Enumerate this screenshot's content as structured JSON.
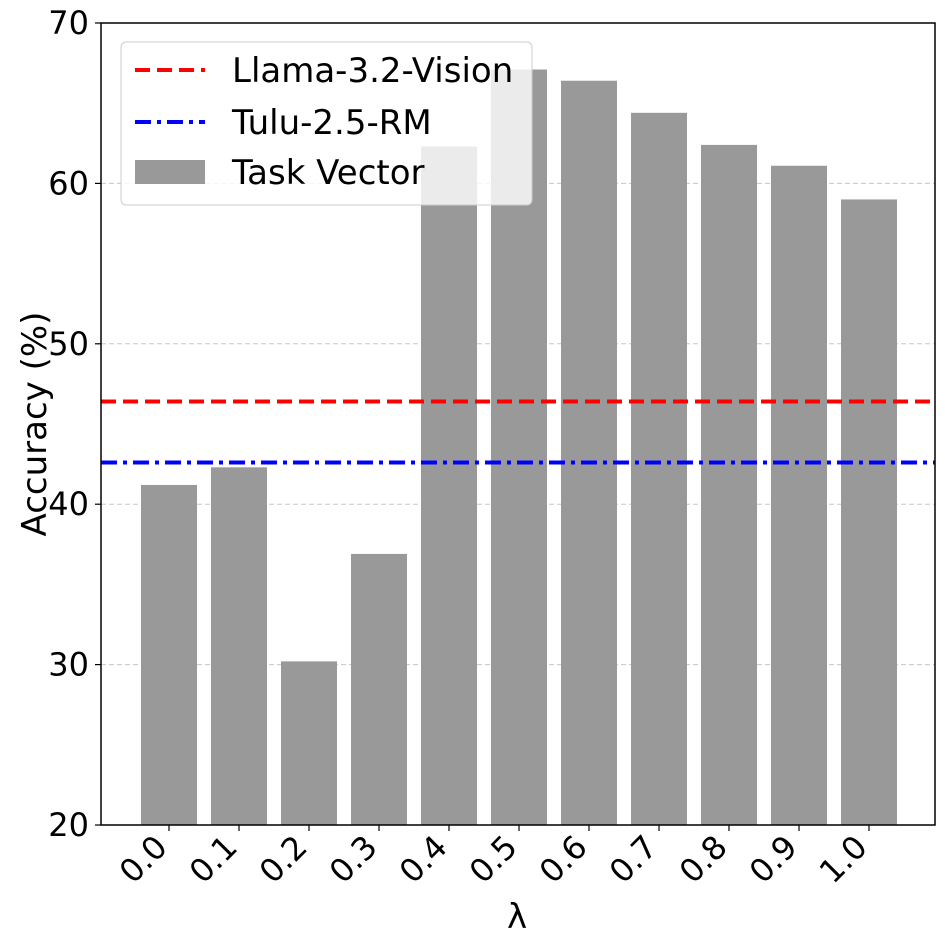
{
  "chart_data": {
    "type": "bar",
    "xlabel": "λ",
    "ylabel": "Accuracy (%)",
    "ylim": [
      20,
      70
    ],
    "yticks": [
      20,
      30,
      40,
      50,
      60,
      70
    ],
    "grid": "horizontal dashed",
    "legend_position": "upper-left",
    "categories": [
      "0.0",
      "0.1",
      "0.2",
      "0.3",
      "0.4",
      "0.5",
      "0.6",
      "0.7",
      "0.8",
      "0.9",
      "1.0"
    ],
    "series": [
      {
        "name": "Task Vector",
        "color": "#999999",
        "values": [
          41.2,
          42.3,
          30.2,
          36.9,
          62.3,
          67.1,
          66.4,
          64.4,
          62.4,
          61.1,
          59.0
        ]
      }
    ],
    "reference_lines": [
      {
        "name": "Llama-3.2-Vision",
        "value": 46.4,
        "color": "#ff0000",
        "style": "dashed"
      },
      {
        "name": "Tulu-2.5-RM",
        "value": 42.6,
        "color": "#0000ff",
        "style": "dashdot"
      }
    ]
  }
}
